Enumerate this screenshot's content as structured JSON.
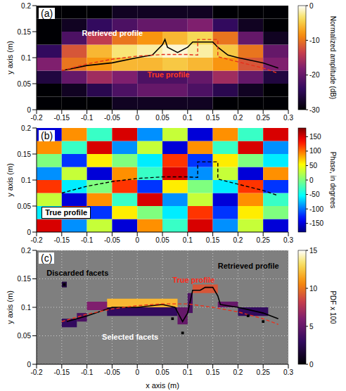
{
  "chart_data": [
    {
      "type": "heatmap",
      "panel_label": "(a)",
      "xlim": [
        -0.2,
        0.3
      ],
      "xticks": [
        -0.2,
        -0.15,
        -0.1,
        -0.05,
        0,
        0.05,
        0.1,
        0.15,
        0.2,
        0.25,
        0.3
      ],
      "ylim": [
        0,
        0.2
      ],
      "yticks": [
        0,
        0.05,
        0.1,
        0.15,
        0.2
      ],
      "y_label": "y axis (m)",
      "grid": false,
      "colorbar": {
        "label": "Normalized amplitude (dB)",
        "range": [
          -30,
          0
        ],
        "ticks": [
          0,
          -10,
          -20,
          -30
        ]
      },
      "cells": {
        "x_edges": [
          -0.2,
          -0.15,
          -0.1,
          -0.05,
          0,
          0.05,
          0.1,
          0.15,
          0.2,
          0.25,
          0.3
        ],
        "y_edges": [
          0,
          0.025,
          0.05,
          0.075,
          0.1,
          0.125,
          0.15,
          0.175,
          0.2
        ],
        "values": [
          [
            -30,
            -30,
            -30,
            -28,
            -28,
            -28,
            -28,
            -30,
            -30,
            -30
          ],
          [
            -30,
            -28,
            -25,
            -22,
            -20,
            -20,
            -22,
            -25,
            -28,
            -30
          ],
          [
            -26,
            -20,
            -16,
            -18,
            -22,
            -22,
            -20,
            -16,
            -20,
            -26
          ],
          [
            -18,
            -10,
            -8,
            -6,
            -6,
            -5,
            -6,
            -8,
            -12,
            -18
          ],
          [
            -24,
            -12,
            -6,
            -3,
            -2,
            -1,
            -2,
            -5,
            -10,
            -20
          ],
          [
            -30,
            -22,
            -14,
            -10,
            -8,
            -6,
            -4,
            -10,
            -20,
            -28
          ],
          [
            -30,
            -28,
            -24,
            -22,
            -20,
            -20,
            -18,
            -24,
            -28,
            -30
          ],
          [
            -30,
            -30,
            -30,
            -28,
            -28,
            -28,
            -28,
            -30,
            -30,
            -30
          ]
        ]
      },
      "series": [
        {
          "name": "Retrieved profile",
          "color": "#000000",
          "line_style": "solid",
          "x": [
            -0.15,
            -0.1,
            -0.05,
            0,
            0.03,
            0.05,
            0.055,
            0.06,
            0.08,
            0.1,
            0.11,
            0.12,
            0.15,
            0.16,
            0.18,
            0.2,
            0.25,
            0.28
          ],
          "values": [
            0.075,
            0.085,
            0.09,
            0.1,
            0.105,
            0.125,
            0.135,
            0.12,
            0.11,
            0.12,
            0.13,
            0.13,
            0.13,
            0.12,
            0.105,
            0.1,
            0.09,
            0.08
          ]
        },
        {
          "name": "True profile",
          "color": "#e8301c",
          "line_style": "dashed",
          "x": [
            -0.15,
            -0.1,
            -0.05,
            0,
            0.05,
            0.1,
            0.12,
            0.12,
            0.16,
            0.16,
            0.2,
            0.25,
            0.28
          ],
          "values": [
            0.075,
            0.088,
            0.097,
            0.103,
            0.106,
            0.106,
            0.105,
            0.135,
            0.135,
            0.102,
            0.092,
            0.08,
            0.07
          ]
        }
      ],
      "annotations": []
    },
    {
      "type": "heatmap",
      "panel_label": "(b)",
      "xlim": [
        -0.2,
        0.3
      ],
      "xticks": [
        -0.2,
        -0.15,
        -0.1,
        -0.05,
        0,
        0.05,
        0.1,
        0.15,
        0.2,
        0.25,
        0.3
      ],
      "ylim": [
        0,
        0.2
      ],
      "yticks": [
        0,
        0.05,
        0.1,
        0.15,
        0.2
      ],
      "y_label": "y axis (m)",
      "grid": false,
      "colorbar": {
        "label": "Phase, in degrees",
        "range": [
          -180,
          180
        ],
        "ticks": [
          150,
          100,
          50,
          0,
          -50,
          -100,
          -150
        ]
      },
      "cells": {
        "x_edges": [
          -0.2,
          -0.15,
          -0.1,
          -0.05,
          0,
          0.05,
          0.1,
          0.15,
          0.2,
          0.25,
          0.3
        ],
        "y_edges": [
          0,
          0.025,
          0.05,
          0.075,
          0.1,
          0.125,
          0.15,
          0.175,
          0.2
        ],
        "values": [
          [
            150,
            -90,
            30,
            -150,
            90,
            -30,
            150,
            -90,
            30,
            -150
          ],
          [
            -60,
            120,
            -120,
            60,
            0,
            -60,
            120,
            -120,
            60,
            0
          ],
          [
            30,
            -150,
            90,
            -30,
            150,
            -90,
            30,
            -150,
            90,
            -30
          ],
          [
            120,
            -60,
            0,
            120,
            -120,
            60,
            0,
            -60,
            120,
            -120
          ],
          [
            -90,
            30,
            -150,
            90,
            -30,
            150,
            -90,
            30,
            -150,
            90
          ],
          [
            0,
            -120,
            60,
            0,
            -60,
            120,
            -120,
            60,
            0,
            -60
          ],
          [
            90,
            -30,
            150,
            -90,
            30,
            -150,
            90,
            -30,
            150,
            -90
          ],
          [
            -150,
            90,
            -30,
            150,
            -90,
            30,
            -150,
            90,
            -30,
            150
          ]
        ]
      },
      "series": [
        {
          "name": "True profile",
          "color": "#000000",
          "line_style": "dashed",
          "x": [
            -0.15,
            -0.1,
            -0.05,
            0,
            0.05,
            0.1,
            0.12,
            0.12,
            0.16,
            0.16,
            0.2,
            0.25,
            0.28
          ],
          "values": [
            0.075,
            0.088,
            0.097,
            0.103,
            0.106,
            0.106,
            0.105,
            0.135,
            0.135,
            0.102,
            0.092,
            0.08,
            0.07
          ]
        }
      ],
      "annotations": []
    },
    {
      "type": "heatmap",
      "panel_label": "(c)",
      "xlim": [
        -0.2,
        0.3
      ],
      "xticks": [
        -0.2,
        -0.15,
        -0.1,
        -0.05,
        0,
        0.05,
        0.1,
        0.15,
        0.2,
        0.25,
        0.3
      ],
      "ylim": [
        0,
        0.2
      ],
      "yticks": [
        0,
        0.05,
        0.1,
        0.15,
        0.2
      ],
      "x_label": "x axis (m)",
      "y_label": "y axis (m)",
      "grid": true,
      "colorbar": {
        "label": "PDF x 100",
        "range": [
          0,
          15
        ],
        "ticks": [
          15,
          10,
          5,
          0
        ]
      },
      "cells": [
        {
          "x1": -0.06,
          "x2": 0.08,
          "y1": 0.1,
          "y2": 0.115,
          "value": 12
        },
        {
          "x1": -0.1,
          "x2": -0.06,
          "y1": 0.095,
          "y2": 0.11,
          "value": 6
        },
        {
          "x1": -0.12,
          "x2": -0.1,
          "y1": 0.075,
          "y2": 0.09,
          "value": 4
        },
        {
          "x1": -0.15,
          "x2": -0.12,
          "y1": 0.065,
          "y2": 0.08,
          "value": 3
        },
        {
          "x1": -0.06,
          "x2": 0.08,
          "y1": 0.085,
          "y2": 0.1,
          "value": 3
        },
        {
          "x1": 0.08,
          "x2": 0.1,
          "y1": 0.07,
          "y2": 0.1,
          "value": 5
        },
        {
          "x1": 0.11,
          "x2": 0.16,
          "y1": 0.125,
          "y2": 0.14,
          "value": 9
        },
        {
          "x1": 0.1,
          "x2": 0.11,
          "y1": 0.09,
          "y2": 0.125,
          "value": 4
        },
        {
          "x1": 0.16,
          "x2": 0.2,
          "y1": 0.1,
          "y2": 0.11,
          "value": 5
        },
        {
          "x1": 0.2,
          "x2": 0.26,
          "y1": 0.085,
          "y2": 0.1,
          "value": 3
        },
        {
          "x1": -0.15,
          "x2": -0.14,
          "y1": 0.135,
          "y2": 0.145,
          "value": 2
        }
      ],
      "facet_points": {
        "x": [
          -0.145,
          0.09,
          0.22,
          0.25,
          0.07
        ],
        "y": [
          0.14,
          0.055,
          0.085,
          0.075,
          0.08
        ]
      },
      "series": [
        {
          "name": "Retrieved profile",
          "color": "#000000",
          "line_style": "solid",
          "x": [
            -0.14,
            -0.1,
            -0.05,
            0,
            0.05,
            0.075,
            0.09,
            0.1,
            0.11,
            0.125,
            0.135,
            0.15,
            0.16,
            0.165,
            0.2,
            0.25,
            0.28
          ],
          "values": [
            0.075,
            0.085,
            0.1,
            0.1,
            0.105,
            0.1,
            0.075,
            0.09,
            0.13,
            0.13,
            0.135,
            0.135,
            0.12,
            0.105,
            0.1,
            0.09,
            0.08
          ]
        },
        {
          "name": "True profile",
          "color": "#e8301c",
          "line_style": "dashed",
          "x": [
            -0.15,
            -0.1,
            -0.05,
            0,
            0.05,
            0.1,
            0.15,
            0.2,
            0.25,
            0.28
          ],
          "values": [
            0.075,
            0.088,
            0.097,
            0.103,
            0.106,
            0.106,
            0.1,
            0.092,
            0.08,
            0.07
          ]
        }
      ],
      "annotations": [
        "Discarded facets",
        "Selected facets"
      ]
    }
  ]
}
